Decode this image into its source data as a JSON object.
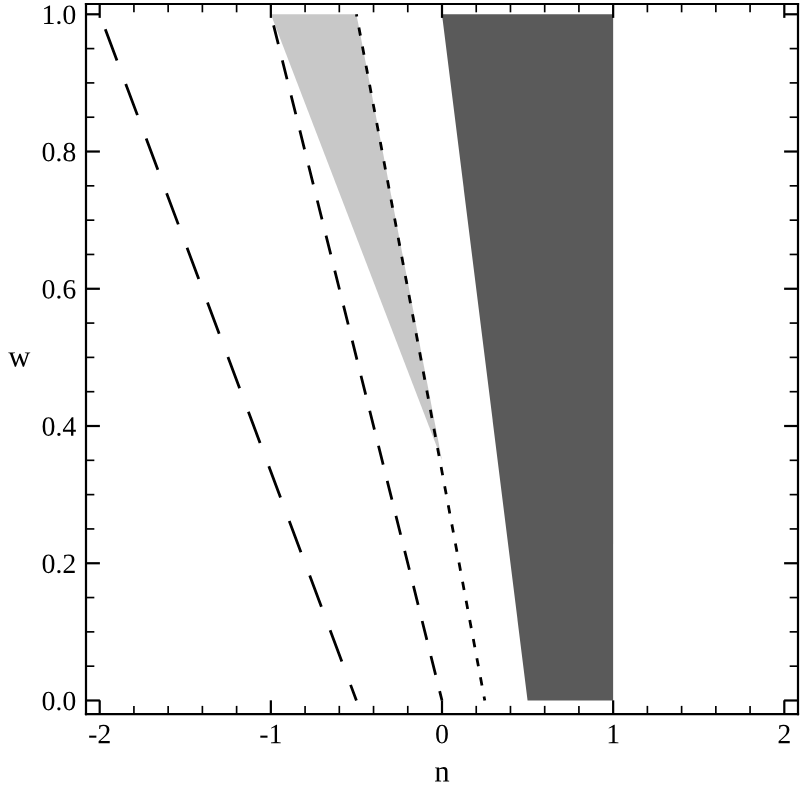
{
  "chart_data": {
    "type": "line",
    "xlabel": "n",
    "ylabel": "w",
    "xlim": [
      -2.08,
      2.08
    ],
    "ylim": [
      -0.02,
      1.015
    ],
    "xticks": [
      -2,
      -1,
      0,
      1,
      2
    ],
    "yticks": [
      {
        "value": 0,
        "label": "0.0"
      },
      {
        "value": 0.2,
        "label": "0.2"
      },
      {
        "value": 0.4,
        "label": "0.4"
      },
      {
        "value": 0.6,
        "label": "0.6"
      },
      {
        "value": 0.8,
        "label": "0.8"
      },
      {
        "value": 1,
        "label": "1.0"
      }
    ],
    "grid": false,
    "legend": false,
    "series": [
      {
        "type": "area",
        "color": "#c8c8c8",
        "x": [
          -1,
          -0.5,
          0
        ],
        "values": [
          1,
          1,
          0.35
        ]
      },
      {
        "type": "area",
        "color": "#5a5a5a",
        "x": [
          0,
          1,
          1,
          0.5
        ],
        "values": [
          1,
          1,
          0,
          0
        ]
      },
      {
        "color": "#000000",
        "line_style": "dashed",
        "x": [
          -2,
          -0.5
        ],
        "values": [
          1,
          0
        ]
      },
      {
        "color": "#000000",
        "line_style": "dashed",
        "x": [
          -1,
          0
        ],
        "values": [
          1,
          0
        ]
      },
      {
        "color": "#000000",
        "line_style": "dashed",
        "x": [
          -0.5,
          0.25
        ],
        "values": [
          1,
          0
        ]
      }
    ]
  }
}
